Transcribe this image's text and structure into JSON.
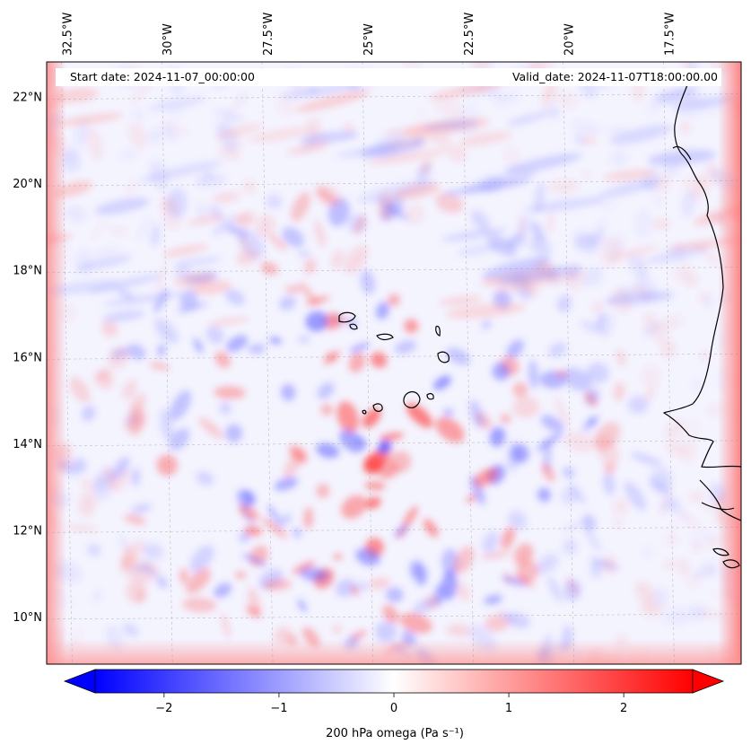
{
  "header": {
    "start_date": "Start date: 2024-11-07_00:00:00",
    "valid_date": "Valid_date: 2024-11-07T18:00:00.00"
  },
  "map": {
    "lon_range": [
      -33.0,
      -15.7
    ],
    "lat_range": [
      8.9,
      22.8
    ],
    "lon_ticks": [
      {
        "value": -32.5,
        "label": "32.5°W"
      },
      {
        "value": -30.0,
        "label": "30°W"
      },
      {
        "value": -27.5,
        "label": "27.5°W"
      },
      {
        "value": -25.0,
        "label": "25°W"
      },
      {
        "value": -22.5,
        "label": "22.5°W"
      },
      {
        "value": -20.0,
        "label": "20°W"
      },
      {
        "value": -17.5,
        "label": "17.5°W"
      }
    ],
    "lat_ticks": [
      {
        "value": 10,
        "label": "10°N"
      },
      {
        "value": 12,
        "label": "12°N"
      },
      {
        "value": 14,
        "label": "14°N"
      },
      {
        "value": 16,
        "label": "16°N"
      },
      {
        "value": 18,
        "label": "18°N"
      },
      {
        "value": 20,
        "label": "20°N"
      },
      {
        "value": 22,
        "label": "22°N"
      }
    ],
    "gridlines": true,
    "coastlines": [
      "Cape Verde islands",
      "West African coast"
    ]
  },
  "colorbar": {
    "label": "200 hPa omega (Pa s⁻¹)",
    "range": [
      -2.6,
      2.6
    ],
    "ticks": [
      {
        "value": -2,
        "label": "−2"
      },
      {
        "value": -1,
        "label": "−1"
      },
      {
        "value": 0,
        "label": "0"
      },
      {
        "value": 1,
        "label": "1"
      },
      {
        "value": 2,
        "label": "2"
      }
    ],
    "colormap": "bwr",
    "low_color": "#0000ff",
    "mid_color": "#ffffff",
    "high_color": "#ff0000",
    "extend": "both"
  }
}
